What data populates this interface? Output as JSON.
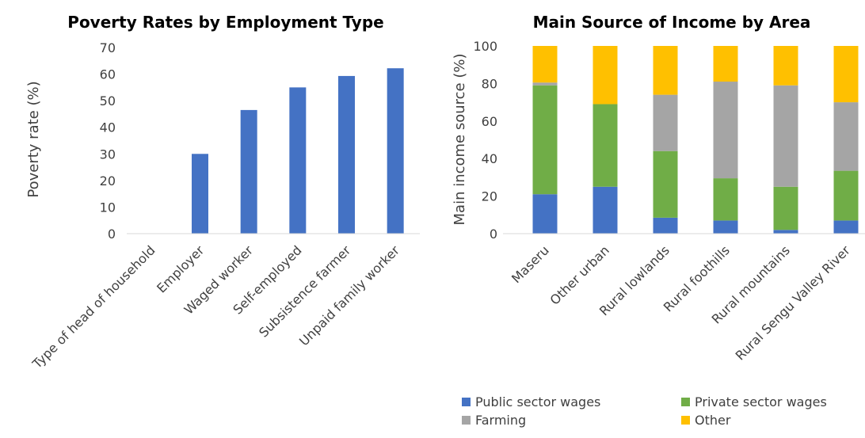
{
  "chart_data": [
    {
      "type": "bar",
      "title": "Poverty Rates by Employment Type",
      "ylabel": "Poverty rate (%)",
      "xlabel": "",
      "categories": [
        "Type of head of household",
        "Employer",
        "Waged worker",
        "Self-employed",
        "Subsistence farmer",
        "Unpaid family worker"
      ],
      "values": [
        0,
        30,
        46.5,
        55,
        59.3,
        62.2
      ],
      "ylim": [
        0,
        70
      ],
      "yticks": [
        "0",
        "10",
        "20",
        "30",
        "40",
        "50",
        "60",
        "70"
      ],
      "color": "#4472C4",
      "grid": false,
      "legend": "none"
    },
    {
      "type": "bar",
      "stacked": true,
      "title": "Main Source of Income by Area",
      "ylabel": "Main income source (%)",
      "xlabel": "",
      "categories": [
        "Maseru",
        "Other urban",
        "Rural lowlands",
        "Rural foothills",
        "Rural mountains",
        "Rural Sengu Valley River"
      ],
      "series": [
        {
          "name": "Public sector wages",
          "color": "#4472C4",
          "values": [
            21,
            25,
            8.5,
            7,
            2,
            7
          ]
        },
        {
          "name": "Private sector wages",
          "color": "#70AD47",
          "values": [
            58,
            44,
            35.5,
            22.5,
            23,
            26.5
          ]
        },
        {
          "name": "Farming",
          "color": "#A5A5A5",
          "values": [
            1.5,
            0,
            30,
            51.5,
            54,
            36.5
          ]
        },
        {
          "name": "Other",
          "color": "#FFC000",
          "values": [
            19.5,
            31,
            26,
            19,
            21,
            30
          ]
        }
      ],
      "ylim": [
        0,
        100
      ],
      "yticks": [
        "0",
        "20",
        "40",
        "60",
        "80",
        "100"
      ],
      "grid": false,
      "legend": "bottom"
    }
  ]
}
